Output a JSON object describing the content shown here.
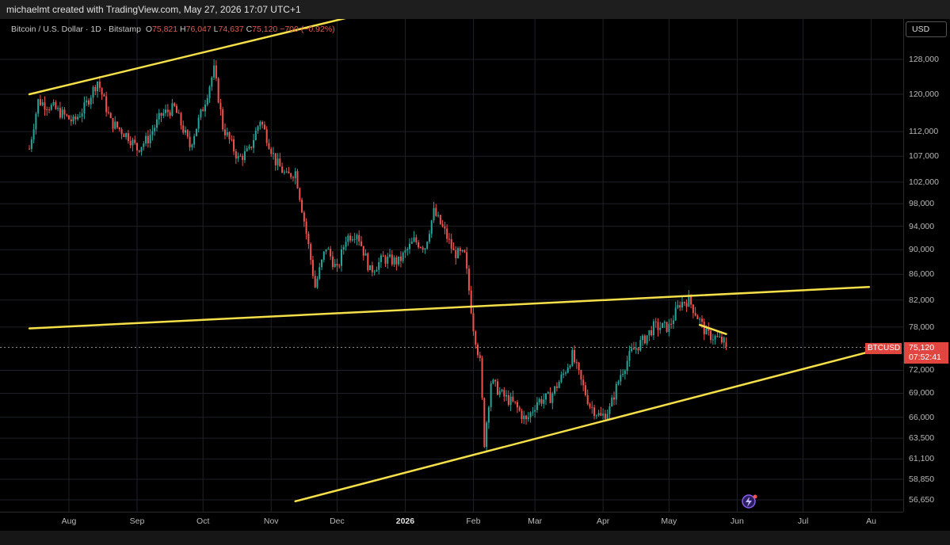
{
  "header": {
    "attribution": "michaelmt created with TradingView.com, May 27, 2026 17:07 UTC+1"
  },
  "legend": {
    "symbol": "Bitcoin / U.S. Dollar · 1D · Bitstamp",
    "open_label": "O",
    "open": "75,821",
    "high_label": "H",
    "high": "76,047",
    "low_label": "L",
    "low": "74,637",
    "close_label": "C",
    "close": "75,120",
    "change": "−700 (−0.92%)"
  },
  "currency_button": "USD",
  "price_tag": {
    "symbol": "BTCUSD",
    "price": "75,120",
    "countdown": "07:52:41"
  },
  "colors": {
    "up": "#26a69a",
    "down": "#ef5350",
    "trendline": "#f5e04a",
    "grid": "#1e2127",
    "background": "#000000"
  },
  "chart_data": {
    "type": "candlestick",
    "title": "Bitcoin / U.S. Dollar · 1D · Bitstamp",
    "y_scale": "log",
    "y_ticks": [
      128000,
      120000,
      112000,
      107000,
      102000,
      98000,
      94000,
      90000,
      86000,
      82000,
      78000,
      72000,
      69000,
      66000,
      63500,
      61100,
      58850,
      56650
    ],
    "y_tick_labels": [
      "128,000",
      "120,000",
      "112,000",
      "107,000",
      "102,000",
      "98,000",
      "94,000",
      "90,000",
      "86,000",
      "82,000",
      "78,000",
      "72,000",
      "69,000",
      "66,000",
      "63,500",
      "61,100",
      "58,850",
      "56,650"
    ],
    "x_ticks": [
      "Aug",
      "Sep",
      "Oct",
      "Nov",
      "Dec",
      "2026",
      "Feb",
      "Mar",
      "Apr",
      "May",
      "Jun",
      "Jul",
      "Au"
    ],
    "x_tick_dates": [
      "2025-08-01",
      "2025-09-01",
      "2025-10-01",
      "2025-11-01",
      "2025-12-01",
      "2026-01-01",
      "2026-02-01",
      "2026-03-01",
      "2026-04-01",
      "2026-05-01",
      "2026-06-01",
      "2026-07-01",
      "2026-08-01"
    ],
    "price_path": [
      [
        "2025-07-14",
        108500
      ],
      [
        "2025-07-18",
        118500
      ],
      [
        "2025-07-25",
        117000
      ],
      [
        "2025-08-03",
        114000
      ],
      [
        "2025-08-08",
        117000
      ],
      [
        "2025-08-14",
        123000
      ],
      [
        "2025-08-20",
        114000
      ],
      [
        "2025-08-28",
        111000
      ],
      [
        "2025-09-01",
        108500
      ],
      [
        "2025-09-06",
        110500
      ],
      [
        "2025-09-12",
        115500
      ],
      [
        "2025-09-18",
        117000
      ],
      [
        "2025-09-25",
        109000
      ],
      [
        "2025-10-01",
        117000
      ],
      [
        "2025-10-06",
        125500
      ],
      [
        "2025-10-10",
        113000
      ],
      [
        "2025-10-17",
        106500
      ],
      [
        "2025-10-22",
        108000
      ],
      [
        "2025-10-27",
        114500
      ],
      [
        "2025-11-03",
        106000
      ],
      [
        "2025-11-08",
        103000
      ],
      [
        "2025-11-12",
        104000
      ],
      [
        "2025-11-16",
        95000
      ],
      [
        "2025-11-21",
        84000
      ],
      [
        "2025-11-26",
        90500
      ],
      [
        "2025-12-01",
        86500
      ],
      [
        "2025-12-05",
        92000
      ],
      [
        "2025-12-10",
        93000
      ],
      [
        "2025-12-16",
        86500
      ],
      [
        "2025-12-22",
        88500
      ],
      [
        "2025-12-29",
        88000
      ],
      [
        "2026-01-05",
        91500
      ],
      [
        "2026-01-10",
        90500
      ],
      [
        "2026-01-14",
        96500
      ],
      [
        "2026-01-19",
        93000
      ],
      [
        "2026-01-23",
        89500
      ],
      [
        "2026-01-28",
        89000
      ],
      [
        "2026-02-01",
        78000
      ],
      [
        "2026-02-04",
        73000
      ],
      [
        "2026-02-06",
        63000
      ],
      [
        "2026-02-09",
        70500
      ],
      [
        "2026-02-14",
        68800
      ],
      [
        "2026-02-20",
        67500
      ],
      [
        "2026-02-25",
        65500
      ],
      [
        "2026-03-02",
        68000
      ],
      [
        "2026-03-08",
        68500
      ],
      [
        "2026-03-14",
        71500
      ],
      [
        "2026-03-18",
        74000
      ],
      [
        "2026-03-22",
        70500
      ],
      [
        "2026-03-26",
        67500
      ],
      [
        "2026-03-31",
        66000
      ],
      [
        "2026-04-04",
        67000
      ],
      [
        "2026-04-09",
        71500
      ],
      [
        "2026-04-14",
        74500
      ],
      [
        "2026-04-19",
        76000
      ],
      [
        "2026-04-24",
        78000
      ],
      [
        "2026-05-01",
        78000
      ],
      [
        "2026-05-06",
        81500
      ],
      [
        "2026-05-10",
        82000
      ],
      [
        "2026-05-14",
        79500
      ],
      [
        "2026-05-18",
        77000
      ],
      [
        "2026-05-22",
        76500
      ],
      [
        "2026-05-26",
        75821
      ],
      [
        "2026-05-27",
        75120
      ]
    ],
    "trendlines": [
      {
        "from": [
          "2025-07-14",
          120000
        ],
        "to": [
          "2026-05-10",
          161000
        ]
      },
      {
        "from": [
          "2025-07-14",
          77800
        ],
        "to": [
          "2026-07-31",
          84000
        ]
      },
      {
        "from": [
          "2025-11-12",
          56500
        ],
        "to": [
          "2026-07-31",
          74500
        ]
      },
      {
        "from": [
          "2026-05-15",
          78300
        ],
        "to": [
          "2026-05-27",
          77000
        ]
      }
    ],
    "last_price": 75120
  }
}
